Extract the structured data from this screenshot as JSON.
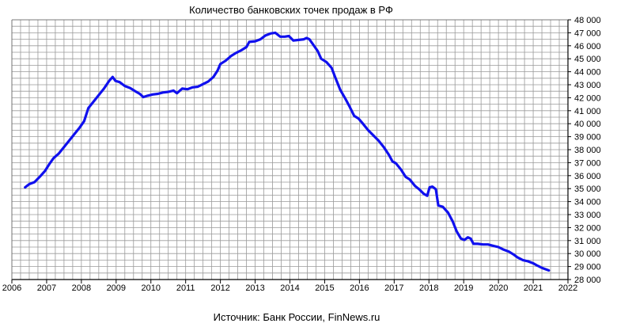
{
  "chart_data": {
    "type": "line",
    "title": "Количество банковских точек продаж в РФ",
    "source": "Источник: Банк России, FinNews.ru",
    "xlabel": "",
    "ylabel": "",
    "xlim": [
      2006,
      2022
    ],
    "ylim": [
      28000,
      48000
    ],
    "grid": true,
    "y_axis_side": "right",
    "x_ticks": [
      "2006",
      "2007",
      "2008",
      "2009",
      "2010",
      "2011",
      "2012",
      "2013",
      "2014",
      "2015",
      "2016",
      "2017",
      "2018",
      "2019",
      "2020",
      "2021",
      "2022"
    ],
    "y_ticks": [
      "28 000",
      "29 000",
      "30 000",
      "31 000",
      "32 000",
      "33 000",
      "34 000",
      "35 000",
      "36 000",
      "37 000",
      "38 000",
      "39 000",
      "40 000",
      "41 000",
      "42 000",
      "43 000",
      "44 000",
      "45 000",
      "46 000",
      "47 000",
      "48 000"
    ],
    "series_color": "#1010ee",
    "series": [
      {
        "values": [
          [
            2006.38,
            35100
          ],
          [
            2006.5,
            35350
          ],
          [
            2006.65,
            35500
          ],
          [
            2006.8,
            35900
          ],
          [
            2006.95,
            36350
          ],
          [
            2007.08,
            36900
          ],
          [
            2007.2,
            37350
          ],
          [
            2007.35,
            37700
          ],
          [
            2007.5,
            38200
          ],
          [
            2007.65,
            38700
          ],
          [
            2007.8,
            39200
          ],
          [
            2007.95,
            39700
          ],
          [
            2008.08,
            40200
          ],
          [
            2008.2,
            41200
          ],
          [
            2008.35,
            41700
          ],
          [
            2008.5,
            42200
          ],
          [
            2008.65,
            42700
          ],
          [
            2008.8,
            43300
          ],
          [
            2008.9,
            43600
          ],
          [
            2008.98,
            43300
          ],
          [
            2009.1,
            43200
          ],
          [
            2009.25,
            42900
          ],
          [
            2009.4,
            42750
          ],
          [
            2009.55,
            42500
          ],
          [
            2009.68,
            42300
          ],
          [
            2009.78,
            42050
          ],
          [
            2009.9,
            42150
          ],
          [
            2010.05,
            42250
          ],
          [
            2010.2,
            42300
          ],
          [
            2010.35,
            42400
          ],
          [
            2010.5,
            42450
          ],
          [
            2010.65,
            42550
          ],
          [
            2010.75,
            42350
          ],
          [
            2010.9,
            42700
          ],
          [
            2011.05,
            42650
          ],
          [
            2011.2,
            42800
          ],
          [
            2011.35,
            42850
          ],
          [
            2011.5,
            43050
          ],
          [
            2011.65,
            43250
          ],
          [
            2011.8,
            43600
          ],
          [
            2011.92,
            44100
          ],
          [
            2012.0,
            44600
          ],
          [
            2012.15,
            44850
          ],
          [
            2012.3,
            45200
          ],
          [
            2012.45,
            45450
          ],
          [
            2012.6,
            45650
          ],
          [
            2012.75,
            45900
          ],
          [
            2012.83,
            46300
          ],
          [
            2013.0,
            46350
          ],
          [
            2013.15,
            46500
          ],
          [
            2013.3,
            46800
          ],
          [
            2013.45,
            46950
          ],
          [
            2013.58,
            47000
          ],
          [
            2013.72,
            46700
          ],
          [
            2013.85,
            46700
          ],
          [
            2013.97,
            46750
          ],
          [
            2014.1,
            46400
          ],
          [
            2014.25,
            46450
          ],
          [
            2014.4,
            46500
          ],
          [
            2014.48,
            46600
          ],
          [
            2014.56,
            46500
          ],
          [
            2014.68,
            46050
          ],
          [
            2014.8,
            45600
          ],
          [
            2014.9,
            45000
          ],
          [
            2015.05,
            44750
          ],
          [
            2015.2,
            44300
          ],
          [
            2015.3,
            43600
          ],
          [
            2015.45,
            42600
          ],
          [
            2015.6,
            41900
          ],
          [
            2015.72,
            41300
          ],
          [
            2015.85,
            40600
          ],
          [
            2015.97,
            40400
          ],
          [
            2016.1,
            40000
          ],
          [
            2016.25,
            39500
          ],
          [
            2016.4,
            39100
          ],
          [
            2016.55,
            38700
          ],
          [
            2016.7,
            38200
          ],
          [
            2016.85,
            37600
          ],
          [
            2016.95,
            37100
          ],
          [
            2017.05,
            36950
          ],
          [
            2017.2,
            36450
          ],
          [
            2017.33,
            35900
          ],
          [
            2017.45,
            35700
          ],
          [
            2017.6,
            35200
          ],
          [
            2017.72,
            34950
          ],
          [
            2017.85,
            34600
          ],
          [
            2017.95,
            34450
          ],
          [
            2018.02,
            35100
          ],
          [
            2018.1,
            35150
          ],
          [
            2018.2,
            34950
          ],
          [
            2018.27,
            33700
          ],
          [
            2018.4,
            33600
          ],
          [
            2018.55,
            33150
          ],
          [
            2018.68,
            32500
          ],
          [
            2018.8,
            31700
          ],
          [
            2018.92,
            31150
          ],
          [
            2019.02,
            31050
          ],
          [
            2019.12,
            31250
          ],
          [
            2019.2,
            31150
          ],
          [
            2019.28,
            30750
          ],
          [
            2019.4,
            30750
          ],
          [
            2019.55,
            30700
          ],
          [
            2019.7,
            30700
          ],
          [
            2019.85,
            30600
          ],
          [
            2020.0,
            30500
          ],
          [
            2020.15,
            30300
          ],
          [
            2020.3,
            30150
          ],
          [
            2020.45,
            29900
          ],
          [
            2020.55,
            29700
          ],
          [
            2020.7,
            29500
          ],
          [
            2020.85,
            29400
          ],
          [
            2021.0,
            29250
          ],
          [
            2021.1,
            29100
          ],
          [
            2021.25,
            28900
          ],
          [
            2021.35,
            28800
          ],
          [
            2021.45,
            28700
          ]
        ]
      }
    ]
  }
}
